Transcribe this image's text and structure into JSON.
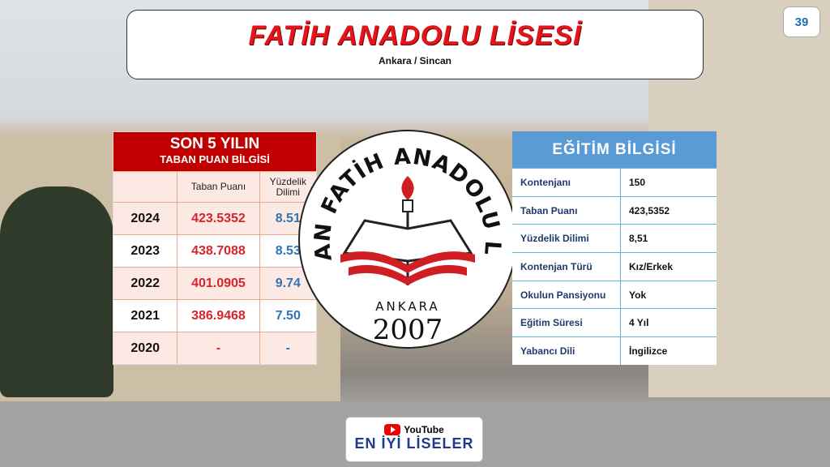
{
  "header": {
    "title": "FATİH ANADOLU LİSESİ",
    "subtitle": "Ankara / Sincan",
    "page_number": "39"
  },
  "score_table": {
    "title_line1": "SON 5 YILIN",
    "title_line2": "TABAN PUAN BİLGİSİ",
    "col_score": "Taban Puanı",
    "col_percentile": "Yüzdelik Dilimi",
    "rows": [
      {
        "year": "2024",
        "score": "423.5352",
        "percentile": "8.51"
      },
      {
        "year": "2023",
        "score": "438.7088",
        "percentile": "8.53"
      },
      {
        "year": "2022",
        "score": "401.0905",
        "percentile": "9.74"
      },
      {
        "year": "2021",
        "score": "386.9468",
        "percentile": "7.50"
      },
      {
        "year": "2020",
        "score": "-",
        "percentile": "-"
      }
    ]
  },
  "logo": {
    "text_arc": "SİNCAN FATİH ANADOLU LİSESİ",
    "city": "ANKARA",
    "year": "2007"
  },
  "edu_table": {
    "title": "EĞİTİM BİLGİSİ",
    "rows": [
      {
        "k": "Kontenjanı",
        "v": "150"
      },
      {
        "k": "Taban Puanı",
        "v": "423,5352"
      },
      {
        "k": "Yüzdelik Dilimi",
        "v": "8,51"
      },
      {
        "k": "Kontenjan Türü",
        "v": "Kız/Erkek"
      },
      {
        "k": "Okulun Pansiyonu",
        "v": "Yok"
      },
      {
        "k": "Eğitim Süresi",
        "v": "4 Yıl"
      },
      {
        "k": "Yabancı Dili",
        "v": "İngilizce"
      }
    ]
  },
  "badge": {
    "top": "YouTube",
    "bottom": "EN İYİ LİSELER"
  }
}
